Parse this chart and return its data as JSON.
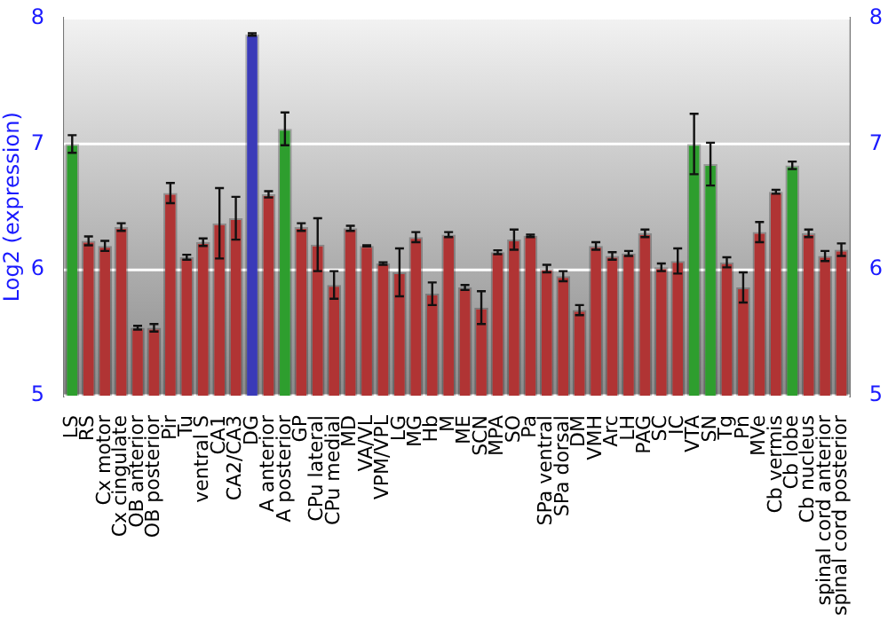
{
  "chart_data": {
    "type": "bar",
    "ylabel": "Log2 (expression)",
    "categories": [
      "LS",
      "RS",
      "Cx motor",
      "Cx cingulate",
      "OB anterior",
      "OB posterior",
      "Pir",
      "Tu",
      "ventral S",
      "CA1",
      "CA2/CA3",
      "DG",
      "A anterior",
      "A posterior",
      "GP",
      "CPu lateral",
      "CPu medial",
      "MD",
      "VA/VL",
      "VPM/VPL",
      "LG",
      "MG",
      "Hb",
      "M",
      "ME",
      "SCN",
      "MPA",
      "SO",
      "Pa",
      "SPa ventral",
      "SPa dorsal",
      "DM",
      "VMH",
      "Arc",
      "LH",
      "PAG",
      "SC",
      "IC",
      "VTA",
      "SN",
      "Tg",
      "Pn",
      "MVe",
      "Cb vermis",
      "Cb lobe",
      "Cb nucleus",
      "spinal cord anterior",
      "spinal cord posterior"
    ],
    "values": [
      7.0,
      6.23,
      6.19,
      6.34,
      5.54,
      5.54,
      6.61,
      6.1,
      6.22,
      6.37,
      6.41,
      7.87,
      6.6,
      7.12,
      6.34,
      6.2,
      5.88,
      6.33,
      6.19,
      6.05,
      5.98,
      6.26,
      5.81,
      6.28,
      5.86,
      5.7,
      6.14,
      6.24,
      6.27,
      6.01,
      5.95,
      5.68,
      6.19,
      6.11,
      6.13,
      6.29,
      6.02,
      6.07,
      7.0,
      6.84,
      6.06,
      5.86,
      6.3,
      6.62,
      6.83,
      6.29,
      6.11,
      6.16
    ],
    "errors": [
      0.07,
      0.035,
      0.04,
      0.03,
      0.015,
      0.03,
      0.08,
      0.02,
      0.03,
      0.28,
      0.17,
      0.01,
      0.025,
      0.13,
      0.03,
      0.21,
      0.11,
      0.02,
      0.005,
      0.01,
      0.19,
      0.04,
      0.09,
      0.02,
      0.02,
      0.13,
      0.015,
      0.08,
      0.01,
      0.03,
      0.04,
      0.04,
      0.03,
      0.03,
      0.02,
      0.03,
      0.03,
      0.1,
      0.24,
      0.17,
      0.04,
      0.12,
      0.08,
      0.015,
      0.03,
      0.03,
      0.04,
      0.05
    ],
    "colors": [
      "#2e9e2e",
      "#b03434",
      "#b03434",
      "#b03434",
      "#b03434",
      "#b03434",
      "#b03434",
      "#b03434",
      "#b03434",
      "#b03434",
      "#b03434",
      "#3a3ab8",
      "#b03434",
      "#2e9e2e",
      "#b03434",
      "#b03434",
      "#b03434",
      "#b03434",
      "#b03434",
      "#b03434",
      "#b03434",
      "#b03434",
      "#b03434",
      "#b03434",
      "#b03434",
      "#b03434",
      "#b03434",
      "#b03434",
      "#b03434",
      "#b03434",
      "#b03434",
      "#b03434",
      "#b03434",
      "#b03434",
      "#b03434",
      "#b03434",
      "#b03434",
      "#b03434",
      "#2e9e2e",
      "#2e9e2e",
      "#b03434",
      "#b03434",
      "#b03434",
      "#b03434",
      "#2e9e2e",
      "#b03434",
      "#b03434",
      "#b03434"
    ],
    "ylim": [
      5,
      8
    ],
    "yticks": [
      5,
      6,
      7,
      8
    ],
    "y2lim": [
      5,
      8
    ],
    "y2ticks": [
      5,
      6,
      7,
      8
    ],
    "grid": "y",
    "legend": false
  }
}
